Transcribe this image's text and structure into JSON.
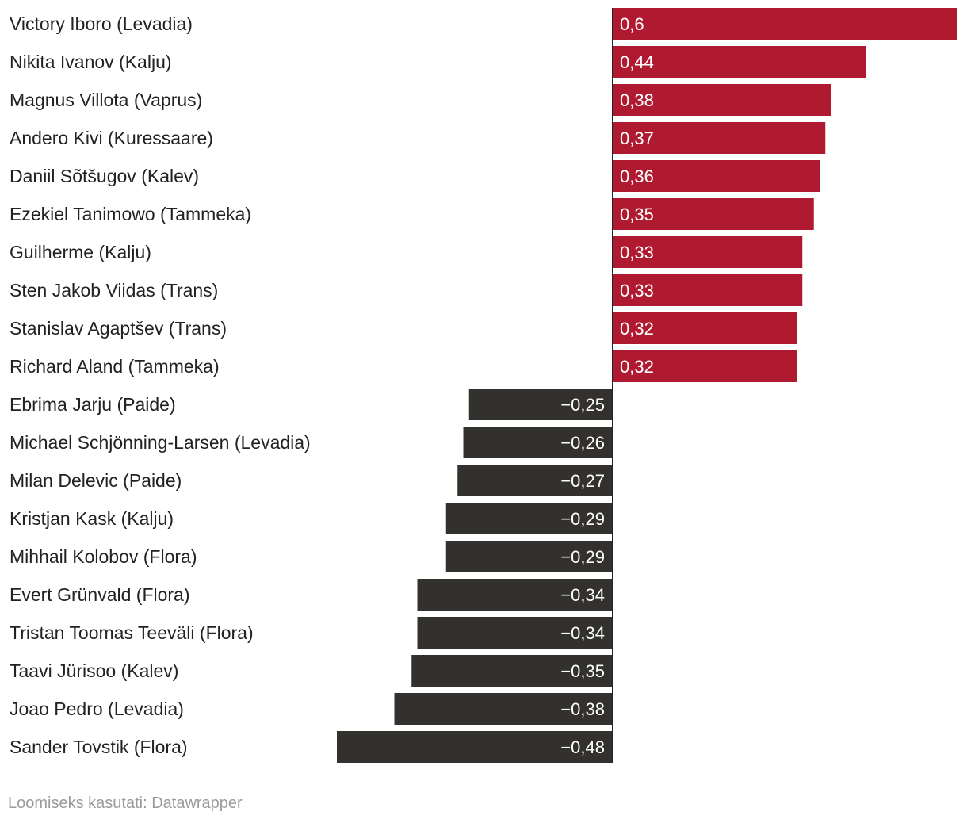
{
  "chart_data": {
    "type": "bar",
    "orientation": "horizontal",
    "title": "",
    "xlabel": "",
    "ylabel": "",
    "xlim": [
      -0.48,
      0.6
    ],
    "categories": [
      "Victory Iboro (Levadia)",
      "Nikita Ivanov (Kalju)",
      "Magnus Villota (Vaprus)",
      "Andero Kivi (Kuressaare)",
      "Daniil Sõtšugov (Kalev)",
      "Ezekiel Tanimowo (Tammeka)",
      "Guilherme (Kalju)",
      "Sten Jakob Viidas (Trans)",
      "Stanislav Agaptšev (Trans)",
      "Richard Aland (Tammeka)",
      "Ebrima Jarju (Paide)",
      "Michael Schjönning-Larsen (Levadia)",
      "Milan Delevic (Paide)",
      "Kristjan Kask (Kalju)",
      "Mihhail Kolobov (Flora)",
      "Evert Grünvald (Flora)",
      "Tristan Toomas Teeväli (Flora)",
      "Taavi Jürisoo (Kalev)",
      "Joao Pedro (Levadia)",
      "Sander Tovstik (Flora)"
    ],
    "values": [
      0.6,
      0.44,
      0.38,
      0.37,
      0.36,
      0.35,
      0.33,
      0.33,
      0.32,
      0.32,
      -0.25,
      -0.26,
      -0.27,
      -0.29,
      -0.29,
      -0.34,
      -0.34,
      -0.35,
      -0.38,
      -0.48
    ],
    "value_labels": [
      "0,6",
      "0,44",
      "0,38",
      "0,37",
      "0,36",
      "0,35",
      "0,33",
      "0,33",
      "0,32",
      "0,32",
      "−0,25",
      "−0,26",
      "−0,27",
      "−0,29",
      "−0,29",
      "−0,34",
      "−0,34",
      "−0,35",
      "−0,38",
      "−0,48"
    ],
    "colors": {
      "positive": "#b01a30",
      "negative": "#33312e",
      "axis": "#222222",
      "label": "#222222",
      "value_text": "#ffffff"
    }
  },
  "footer": {
    "credit": "Loomiseks kasutati: Datawrapper"
  }
}
